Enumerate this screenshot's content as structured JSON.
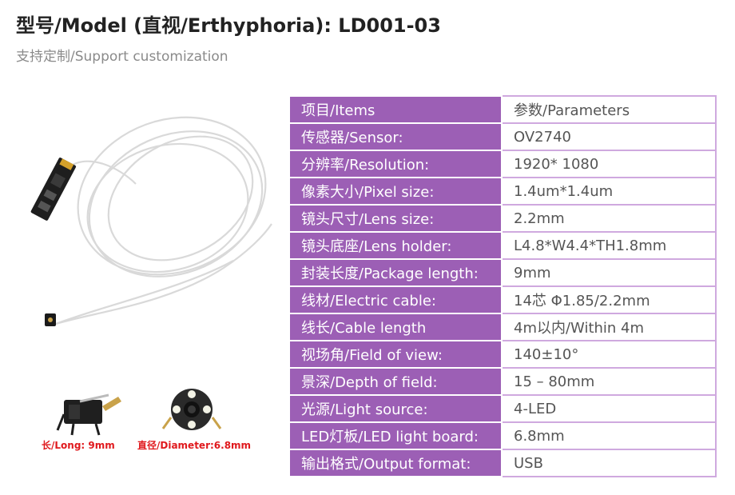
{
  "header": {
    "title": "型号/Model (直视/Erthyphoria): LD001-03",
    "subtitle": "支持定制/Support customization"
  },
  "product": {
    "image_icon": "endoscope-camera-module-icon",
    "thumbs": [
      {
        "icon": "camera-side-view-icon",
        "caption": "长/Long: 9mm"
      },
      {
        "icon": "camera-front-view-led-icon",
        "caption": "直径/Diameter:6.8mm"
      }
    ]
  },
  "spec_table": {
    "header": {
      "key": "项目/Items",
      "value": "参数/Parameters"
    },
    "rows": [
      {
        "key": "传感器/Sensor:",
        "value": "OV2740"
      },
      {
        "key": "分辨率/Resolution:",
        "value": "1920* 1080"
      },
      {
        "key": "像素大小/Pixel size:",
        "value": "1.4um*1.4um"
      },
      {
        "key": "镜头尺寸/Lens size:",
        "value": "2.2mm"
      },
      {
        "key": "镜头底座/Lens holder:",
        "value": "L4.8*W4.4*TH1.8mm"
      },
      {
        "key": "封装长度/Package length:",
        "value": "9mm"
      },
      {
        "key": "线材/Electric cable:",
        "value": "14芯 Φ1.85/2.2mm"
      },
      {
        "key": "线长/Cable length",
        "value": "4m以内/Within 4m"
      },
      {
        "key": "视场角/Field of view:",
        "value": "140±10°"
      },
      {
        "key": "景深/Depth of field:",
        "value": "15 – 80mm"
      },
      {
        "key": "光源/Light source:",
        "value": "4-LED"
      },
      {
        "key": "LED灯板/LED light board:",
        "value": "6.8mm"
      },
      {
        "key": "输出格式/Output format:",
        "value": "USB"
      }
    ],
    "colors": {
      "key_bg": "#9c5fb5",
      "value_border": "#cfa9df"
    }
  }
}
